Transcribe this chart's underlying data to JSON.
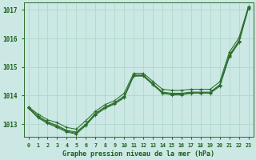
{
  "xlabel": "Graphe pression niveau de la mer (hPa)",
  "ylim": [
    1012.55,
    1017.25
  ],
  "xlim": [
    -0.5,
    23.5
  ],
  "xticks": [
    0,
    1,
    2,
    3,
    4,
    5,
    6,
    7,
    8,
    9,
    10,
    11,
    12,
    13,
    14,
    15,
    16,
    17,
    18,
    19,
    20,
    21,
    22,
    23
  ],
  "yticks": [
    1013,
    1014,
    1015,
    1016,
    1017
  ],
  "bg_color": "#cbe8e4",
  "grid_color": "#b0d8cc",
  "line_color": "#2d6e2d",
  "lines": [
    [
      1013.6,
      1013.35,
      1013.15,
      1013.05,
      1012.88,
      1012.82,
      1013.12,
      1013.45,
      1013.68,
      1013.82,
      1014.08,
      1014.76,
      1014.78,
      1014.48,
      1014.2,
      1014.15,
      1014.15,
      1014.2,
      1014.2,
      1014.2,
      1014.45,
      1015.5,
      1016.0,
      1017.1
    ],
    [
      1013.6,
      1013.3,
      1013.12,
      1013.0,
      1012.85,
      1012.78,
      1013.08,
      1013.42,
      1013.65,
      1013.8,
      1014.05,
      1014.78,
      1014.75,
      1014.45,
      1014.18,
      1014.12,
      1014.12,
      1014.18,
      1014.18,
      1014.18,
      1014.42,
      1015.48,
      1015.98,
      1017.1
    ],
    [
      1013.6,
      1013.28,
      1013.1,
      1012.98,
      1012.82,
      1012.75,
      1013.05,
      1013.4,
      1013.62,
      1013.78,
      1014.02,
      1014.75,
      1014.72,
      1014.42,
      1014.15,
      1014.1,
      1014.1,
      1014.15,
      1014.15,
      1014.15,
      1014.4,
      1015.45,
      1015.95,
      1017.1
    ],
    [
      1013.55,
      1013.25,
      1013.08,
      1012.95,
      1012.8,
      1012.72,
      1013.02,
      1013.38,
      1013.6,
      1013.75,
      1014.0,
      1014.72,
      1014.7,
      1014.4,
      1014.12,
      1014.08,
      1014.08,
      1014.12,
      1014.12,
      1014.12,
      1014.38,
      1015.42,
      1015.92,
      1017.1
    ]
  ],
  "line1": [
    1013.6,
    1013.35,
    1013.15,
    1013.05,
    1012.88,
    1012.82,
    1013.12,
    1013.45,
    1013.68,
    1013.82,
    1014.08,
    1014.78,
    1014.78,
    1014.5,
    1014.22,
    1014.18,
    1014.18,
    1014.22,
    1014.22,
    1014.22,
    1014.48,
    1015.52,
    1016.02,
    1017.12
  ],
  "line2": [
    1013.6,
    1013.28,
    1013.08,
    1012.95,
    1012.78,
    1012.72,
    1013.0,
    1013.38,
    1013.6,
    1013.75,
    1013.98,
    1014.72,
    1014.72,
    1014.42,
    1014.12,
    1014.08,
    1014.08,
    1014.12,
    1014.12,
    1014.12,
    1014.38,
    1015.42,
    1015.92,
    1017.1
  ],
  "line3": [
    1013.58,
    1013.25,
    1013.05,
    1012.92,
    1012.75,
    1012.68,
    1012.98,
    1013.35,
    1013.58,
    1013.72,
    1013.95,
    1014.7,
    1014.7,
    1014.4,
    1014.1,
    1014.05,
    1014.05,
    1014.1,
    1014.1,
    1014.1,
    1014.35,
    1015.38,
    1015.88,
    1017.08
  ],
  "line4": [
    1013.55,
    1013.22,
    1013.02,
    1012.88,
    1012.72,
    1012.65,
    1012.95,
    1013.32,
    1013.55,
    1013.7,
    1013.92,
    1014.68,
    1014.68,
    1014.38,
    1014.08,
    1014.02,
    1014.02,
    1014.08,
    1014.08,
    1014.08,
    1014.32,
    1015.35,
    1015.85,
    1017.05
  ]
}
